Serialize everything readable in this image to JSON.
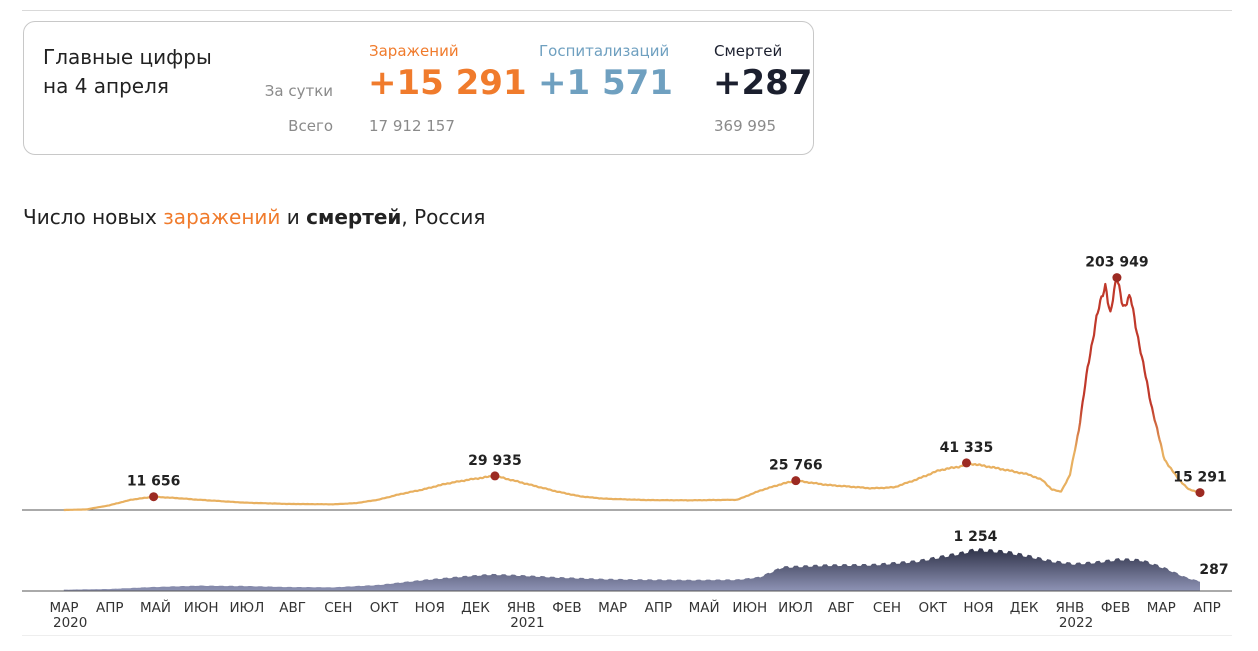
{
  "card": {
    "title_line1": "Главные цифры",
    "title_line2": "на 4 апреля",
    "row_daily": "За сутки",
    "row_total": "Всего",
    "cols": [
      {
        "label": "Заражений",
        "value": "+15 291",
        "total": "17 912 157",
        "color": "#f07b2c"
      },
      {
        "label": "Госпитализаций",
        "value": "+1 571",
        "total": "",
        "color": "#6fa0c0"
      },
      {
        "label": "Смертей",
        "value": "+287",
        "total": "369 995",
        "color": "#1b1f2e"
      }
    ]
  },
  "chart_title": {
    "part1": "Число новых ",
    "part2": "заражений",
    "part3": " и ",
    "part4": "смертей",
    "part5": ", Россия"
  },
  "chart_data": {
    "type": "area",
    "x_ticks": [
      {
        "label": "МАР",
        "year": "2020"
      },
      {
        "label": "АПР",
        "year": ""
      },
      {
        "label": "МАЙ",
        "year": ""
      },
      {
        "label": "ИЮН",
        "year": ""
      },
      {
        "label": "ИЮЛ",
        "year": ""
      },
      {
        "label": "АВГ",
        "year": ""
      },
      {
        "label": "СЕН",
        "year": ""
      },
      {
        "label": "ОКТ",
        "year": ""
      },
      {
        "label": "НОЯ",
        "year": ""
      },
      {
        "label": "ДЕК",
        "year": ""
      },
      {
        "label": "ЯНВ",
        "year": "2021"
      },
      {
        "label": "ФЕВ",
        "year": ""
      },
      {
        "label": "МАР",
        "year": ""
      },
      {
        "label": "АПР",
        "year": ""
      },
      {
        "label": "МАЙ",
        "year": ""
      },
      {
        "label": "ИЮН",
        "year": ""
      },
      {
        "label": "ИЮЛ",
        "year": ""
      },
      {
        "label": "АВГ",
        "year": ""
      },
      {
        "label": "СЕН",
        "year": ""
      },
      {
        "label": "ОКТ",
        "year": ""
      },
      {
        "label": "НОЯ",
        "year": ""
      },
      {
        "label": "ДЕК",
        "year": ""
      },
      {
        "label": "ЯНВ",
        "year": "2022"
      },
      {
        "label": "ФЕВ",
        "year": ""
      },
      {
        "label": "МАР",
        "year": ""
      },
      {
        "label": "АПР",
        "year": ""
      }
    ],
    "series": [
      {
        "name": "заражений",
        "color": "#e8b060",
        "peak_color": "#c0392b",
        "ylim": [
          0,
          215000
        ],
        "points": [
          [
            0.0,
            0
          ],
          [
            0.5,
            500
          ],
          [
            1.0,
            4000
          ],
          [
            1.5,
            9000
          ],
          [
            2.0,
            11656
          ],
          [
            2.5,
            10500
          ],
          [
            3.0,
            9000
          ],
          [
            4.0,
            6500
          ],
          [
            5.0,
            5300
          ],
          [
            6.0,
            5000
          ],
          [
            6.5,
            6000
          ],
          [
            7.0,
            9000
          ],
          [
            7.5,
            14000
          ],
          [
            8.0,
            18000
          ],
          [
            8.5,
            23000
          ],
          [
            9.0,
            26500
          ],
          [
            9.6,
            29935
          ],
          [
            10.0,
            26000
          ],
          [
            10.5,
            21000
          ],
          [
            11.0,
            16000
          ],
          [
            11.5,
            12000
          ],
          [
            12.0,
            10000
          ],
          [
            13.0,
            8700
          ],
          [
            14.0,
            8500
          ],
          [
            15.0,
            9000
          ],
          [
            15.5,
            17000
          ],
          [
            16.0,
            23000
          ],
          [
            16.3,
            25766
          ],
          [
            17.0,
            22000
          ],
          [
            17.5,
            20500
          ],
          [
            18.0,
            19000
          ],
          [
            18.5,
            20000
          ],
          [
            19.0,
            27000
          ],
          [
            19.5,
            35000
          ],
          [
            20.0,
            38500
          ],
          [
            20.1,
            41335
          ],
          [
            20.6,
            38000
          ],
          [
            21.0,
            35000
          ],
          [
            21.5,
            31000
          ],
          [
            21.8,
            26000
          ],
          [
            22.0,
            18000
          ],
          [
            22.2,
            16000
          ],
          [
            22.4,
            30000
          ],
          [
            22.6,
            70000
          ],
          [
            22.8,
            125000
          ],
          [
            23.0,
            170000
          ],
          [
            23.2,
            198000
          ],
          [
            23.3,
            172000
          ],
          [
            23.45,
            203949
          ],
          [
            23.6,
            178000
          ],
          [
            23.75,
            187000
          ],
          [
            24.0,
            135000
          ],
          [
            24.2,
            95000
          ],
          [
            24.5,
            45000
          ],
          [
            24.8,
            28000
          ],
          [
            25.05,
            18000
          ],
          [
            25.3,
            15291
          ]
        ],
        "labels": [
          {
            "x": 2.0,
            "y": 11656,
            "text": "11 656"
          },
          {
            "x": 9.6,
            "y": 29935,
            "text": "29 935"
          },
          {
            "x": 16.3,
            "y": 25766,
            "text": "25 766"
          },
          {
            "x": 20.1,
            "y": 41335,
            "text": "41 335"
          },
          {
            "x": 23.45,
            "y": 203949,
            "text": "203 949"
          },
          {
            "x": 25.3,
            "y": 15291,
            "text": "15 291"
          }
        ]
      },
      {
        "name": "смертей",
        "color": "#4a4d6a",
        "ylim": [
          0,
          1400
        ],
        "points": [
          [
            0.0,
            40
          ],
          [
            1.0,
            60
          ],
          [
            2.0,
            120
          ],
          [
            3.0,
            160
          ],
          [
            4.0,
            150
          ],
          [
            5.0,
            120
          ],
          [
            6.0,
            110
          ],
          [
            7.0,
            180
          ],
          [
            8.0,
            330
          ],
          [
            9.0,
            450
          ],
          [
            9.5,
            500
          ],
          [
            10.0,
            480
          ],
          [
            11.0,
            410
          ],
          [
            12.0,
            360
          ],
          [
            13.0,
            340
          ],
          [
            14.0,
            330
          ],
          [
            15.0,
            340
          ],
          [
            15.5,
            420
          ],
          [
            16.0,
            720
          ],
          [
            17.0,
            780
          ],
          [
            18.0,
            790
          ],
          [
            19.0,
            900
          ],
          [
            20.0,
            1150
          ],
          [
            20.3,
            1254
          ],
          [
            21.0,
            1180
          ],
          [
            21.5,
            1050
          ],
          [
            22.0,
            900
          ],
          [
            22.5,
            820
          ],
          [
            23.0,
            870
          ],
          [
            23.5,
            960
          ],
          [
            24.0,
            930
          ],
          [
            24.5,
            700
          ],
          [
            25.0,
            400
          ],
          [
            25.3,
            287
          ]
        ],
        "labels": [
          {
            "x": 20.3,
            "y": 1254,
            "text": "1 254"
          },
          {
            "x": 25.3,
            "y": 287,
            "text": "287"
          }
        ]
      }
    ]
  }
}
